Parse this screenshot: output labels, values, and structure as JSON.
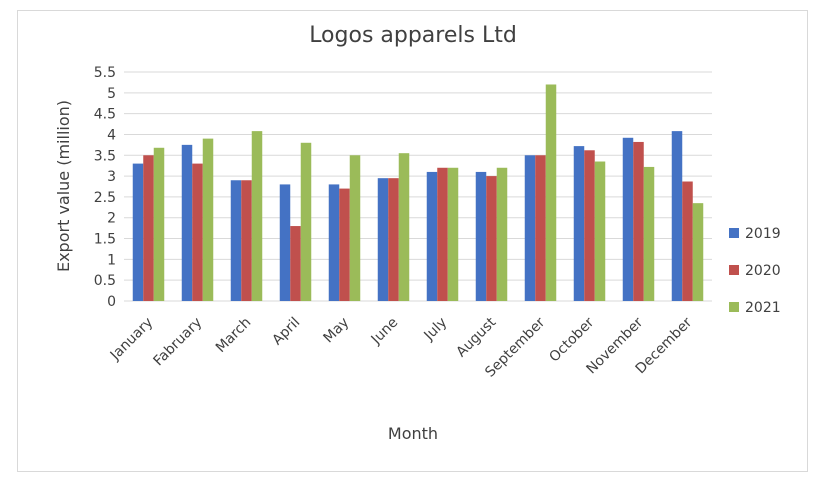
{
  "chart_data": {
    "type": "bar",
    "title": "Logos apparels Ltd",
    "xlabel": "Month",
    "ylabel": "Export value (million)",
    "ylim": [
      0,
      5.5
    ],
    "yticks": [
      "0",
      "0.5",
      "1",
      "1.5",
      "2",
      "2.5",
      "3",
      "3.5",
      "4",
      "4.5",
      "5",
      "5.5"
    ],
    "categories": [
      "January",
      "Fabruary",
      "March",
      "April",
      "May",
      "June",
      "July",
      "August",
      "September",
      "October",
      "November",
      "December"
    ],
    "series": [
      {
        "name": "2019",
        "color": "#4472c4",
        "values": [
          3.3,
          3.75,
          2.9,
          2.8,
          2.8,
          2.95,
          3.1,
          3.1,
          3.5,
          3.72,
          3.92,
          4.08
        ]
      },
      {
        "name": "2020",
        "color": "#c0504d",
        "values": [
          3.5,
          3.3,
          2.9,
          1.8,
          2.7,
          2.95,
          3.2,
          3.0,
          3.5,
          3.62,
          3.82,
          2.87
        ]
      },
      {
        "name": "2021",
        "color": "#9bbb59",
        "values": [
          3.68,
          3.9,
          4.08,
          3.8,
          3.5,
          3.55,
          3.2,
          3.2,
          5.2,
          3.35,
          3.22,
          2.35
        ]
      }
    ],
    "legend": "right",
    "grid": true
  }
}
